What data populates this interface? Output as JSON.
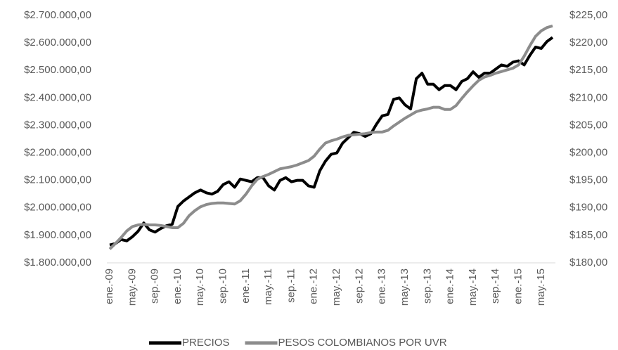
{
  "chart_data": {
    "type": "line",
    "categories": [
      "ene.-09",
      null,
      null,
      null,
      "may.-09",
      null,
      null,
      null,
      "sep.-09",
      null,
      null,
      null,
      "ene.-10",
      null,
      null,
      null,
      "may.-10",
      null,
      null,
      null,
      "sep.-10",
      null,
      null,
      null,
      "ene.-11",
      null,
      null,
      null,
      "may.-11",
      null,
      null,
      null,
      "sep.-11",
      null,
      null,
      null,
      "ene.-12",
      null,
      null,
      null,
      "may.-12",
      null,
      null,
      null,
      "sep.-12",
      null,
      null,
      null,
      "ene.-13",
      null,
      null,
      null,
      "may.-13",
      null,
      null,
      null,
      "sep.-13",
      null,
      null,
      null,
      "ene.-14",
      null,
      null,
      null,
      "may.-14",
      null,
      null,
      null,
      "sep.-14",
      null,
      null,
      null,
      "ene.-15",
      null,
      null,
      null,
      "may.-15",
      null,
      null
    ],
    "series": [
      {
        "name": "PRECIOS",
        "color": "#000000",
        "axis": "y",
        "values": [
          1865000,
          1870000,
          1885000,
          1880000,
          1895000,
          1915000,
          1945000,
          1920000,
          1912000,
          1925000,
          1935000,
          1940000,
          2005000,
          2025000,
          2040000,
          2055000,
          2065000,
          2055000,
          2050000,
          2060000,
          2085000,
          2095000,
          2075000,
          2105000,
          2100000,
          2095000,
          2110000,
          2110000,
          2080000,
          2065000,
          2100000,
          2110000,
          2095000,
          2100000,
          2100000,
          2080000,
          2075000,
          2135000,
          2170000,
          2195000,
          2200000,
          2235000,
          2255000,
          2275000,
          2270000,
          2260000,
          2270000,
          2305000,
          2335000,
          2340000,
          2395000,
          2400000,
          2375000,
          2360000,
          2470000,
          2490000,
          2450000,
          2450000,
          2430000,
          2445000,
          2445000,
          2430000,
          2460000,
          2470000,
          2495000,
          2475000,
          2490000,
          2490000,
          2505000,
          2520000,
          2515000,
          2530000,
          2535000,
          2520000,
          2555000,
          2585000,
          2580000,
          2605000,
          2620000
        ]
      },
      {
        "name": "PESOS COLOMBIANOS POR UVR",
        "color": "#8c8c8c",
        "axis": "y2",
        "values": [
          182.5,
          183.5,
          184.6,
          185.8,
          186.6,
          186.9,
          187.0,
          186.9,
          186.9,
          186.8,
          186.6,
          186.4,
          186.4,
          187.2,
          188.6,
          189.5,
          190.2,
          190.6,
          190.8,
          190.9,
          190.9,
          190.8,
          190.7,
          191.3,
          192.5,
          194.0,
          195.2,
          195.7,
          196.1,
          196.6,
          197.1,
          197.3,
          197.5,
          197.8,
          198.2,
          198.6,
          199.4,
          200.7,
          201.8,
          202.2,
          202.5,
          202.9,
          203.2,
          203.3,
          203.4,
          203.5,
          203.7,
          203.8,
          203.8,
          204.1,
          204.9,
          205.6,
          206.3,
          206.9,
          207.5,
          207.8,
          208.0,
          208.3,
          208.3,
          207.9,
          207.9,
          208.6,
          209.9,
          211.1,
          212.2,
          213.2,
          213.8,
          214.1,
          214.5,
          214.8,
          215.1,
          215.4,
          216.0,
          217.6,
          219.5,
          221.2,
          222.2,
          222.8,
          223.1
        ]
      }
    ],
    "ylim": [
      1800000,
      2700000
    ],
    "yticks": [
      {
        "value": 1800000,
        "label": "$1.800.000,00"
      },
      {
        "value": 1900000,
        "label": "$1.900.000,00"
      },
      {
        "value": 2000000,
        "label": "$2.000.000,00"
      },
      {
        "value": 2100000,
        "label": "$2.100.000,00"
      },
      {
        "value": 2200000,
        "label": "$2.200.000,00"
      },
      {
        "value": 2300000,
        "label": "$2.300.000,00"
      },
      {
        "value": 2400000,
        "label": "$2.400.000,00"
      },
      {
        "value": 2500000,
        "label": "$2.500.000,00"
      },
      {
        "value": 2600000,
        "label": "$2.600.000,00"
      },
      {
        "value": 2700000,
        "label": "$2.700.000,00"
      }
    ],
    "y2lim": [
      180,
      225
    ],
    "y2ticks": [
      {
        "value": 180,
        "label": "$180,00"
      },
      {
        "value": 185,
        "label": "$185,00"
      },
      {
        "value": 190,
        "label": "$190,00"
      },
      {
        "value": 195,
        "label": "$195,00"
      },
      {
        "value": 200,
        "label": "$200,00"
      },
      {
        "value": 205,
        "label": "$205,00"
      },
      {
        "value": 210,
        "label": "$210,00"
      },
      {
        "value": 215,
        "label": "$215,00"
      },
      {
        "value": 220,
        "label": "$220,00"
      },
      {
        "value": 225,
        "label": "$225,00"
      }
    ],
    "grid": false,
    "legend": "bottom"
  }
}
